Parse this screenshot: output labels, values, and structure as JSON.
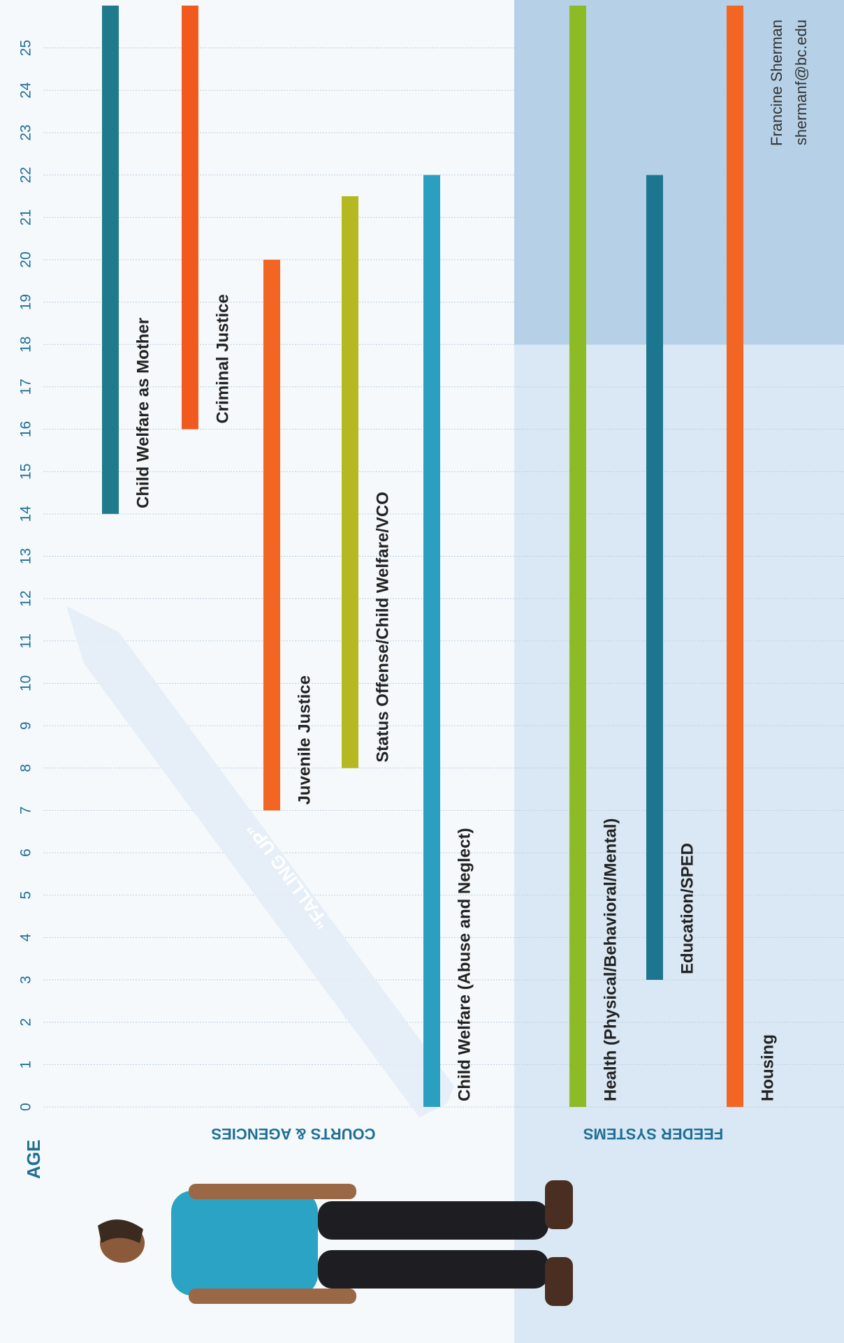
{
  "chart_data": {
    "type": "range",
    "axis_label": "AGE",
    "ylim": [
      0,
      26
    ],
    "yticks": [
      0,
      1,
      2,
      3,
      4,
      5,
      6,
      7,
      8,
      9,
      10,
      11,
      12,
      13,
      14,
      15,
      16,
      17,
      18,
      19,
      20,
      21,
      22,
      23,
      24,
      25
    ],
    "grid": true,
    "shaded_from": 18,
    "annotation": "“FALLING UP”",
    "author": "Francine Sherman",
    "email": "shermanf@bc.edu",
    "groups": [
      {
        "name": "COURTS & AGENCIES",
        "series": [
          {
            "name": "Child Welfare as Mother",
            "color": "#1f7a8c",
            "start": 14,
            "end": 26
          },
          {
            "name": "Criminal Justice",
            "color": "#f05a1e",
            "start": 16,
            "end": 26
          },
          {
            "name": "Juvenile Justice",
            "color": "#f26522",
            "start": 7,
            "end": 20
          },
          {
            "name": "Status Offense/Child Welfare/VCO",
            "color": "#b5b820",
            "start": 8,
            "end": 21.5
          },
          {
            "name": "Child Welfare (Abuse and Neglect)",
            "color": "#2a9fbf",
            "start": 0,
            "end": 22
          }
        ]
      },
      {
        "name": "FEEDER SYSTEMS",
        "series": [
          {
            "name": "Health  (Physical/Behavioral/Mental)",
            "color": "#8dbb26",
            "start": 0,
            "end": 26
          },
          {
            "name": "Education/SPED",
            "color": "#1d7690",
            "start": 3,
            "end": 22
          },
          {
            "name": "Housing",
            "color": "#f26522",
            "start": 0,
            "end": 26
          }
        ]
      }
    ]
  }
}
